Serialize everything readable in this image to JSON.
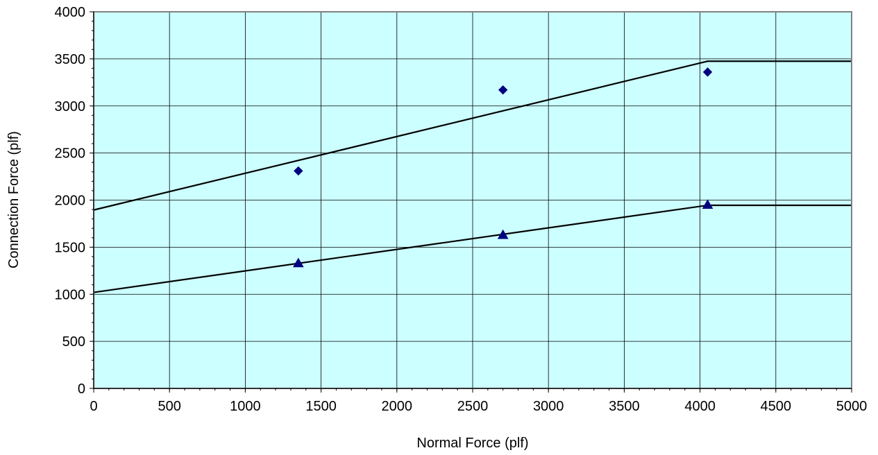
{
  "chart_data": {
    "type": "scatter",
    "title": "",
    "xlabel": "Normal Force (plf)",
    "ylabel": "Connection Force (plf)",
    "xlim": [
      0,
      5000
    ],
    "ylim": [
      0,
      4000
    ],
    "x_ticks": [
      0,
      500,
      1000,
      1500,
      2000,
      2500,
      3000,
      3500,
      4000,
      4500,
      5000
    ],
    "y_ticks": [
      0,
      500,
      1000,
      1500,
      2000,
      2500,
      3000,
      3500,
      4000
    ],
    "grid": true,
    "legend": "none",
    "plot_background": "#ccffff",
    "series": [
      {
        "marker": "diamond",
        "color": "#000080",
        "points": [
          {
            "x": 1350,
            "y": 2310
          },
          {
            "x": 2700,
            "y": 3170
          },
          {
            "x": 4050,
            "y": 3360
          }
        ]
      },
      {
        "marker": "triangle",
        "color": "#000080",
        "points": [
          {
            "x": 1350,
            "y": 1330
          },
          {
            "x": 2700,
            "y": 1630
          },
          {
            "x": 4050,
            "y": 1950
          }
        ]
      }
    ],
    "lines": [
      {
        "color": "#000000",
        "points": [
          {
            "x": 0,
            "y": 1895
          },
          {
            "x": 4050,
            "y": 3475
          },
          {
            "x": 5000,
            "y": 3475
          }
        ]
      },
      {
        "color": "#000000",
        "points": [
          {
            "x": 0,
            "y": 1020
          },
          {
            "x": 4050,
            "y": 1945
          },
          {
            "x": 5000,
            "y": 1945
          }
        ]
      }
    ]
  }
}
